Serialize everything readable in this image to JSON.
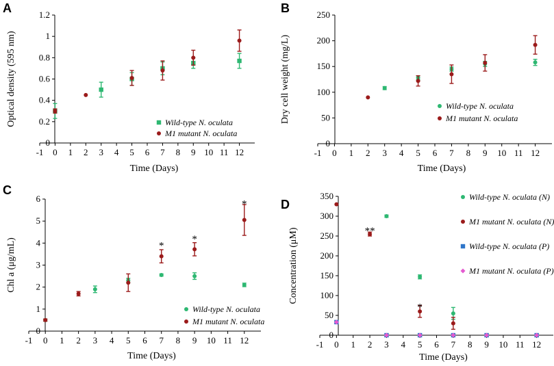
{
  "chart_data": [
    {
      "type": "scatter",
      "panel": "A",
      "xlabel": "Time (Days)",
      "ylabel": "Optical density (595 nm)",
      "xlim": [
        -1,
        13
      ],
      "ylim": [
        0,
        1.2
      ],
      "xticks": [
        -1,
        0,
        1,
        2,
        3,
        4,
        5,
        6,
        7,
        8,
        9,
        10,
        11,
        12
      ],
      "yticks": [
        0,
        0.2,
        0.4,
        0.6,
        0.8,
        1,
        1.2
      ],
      "ytick_labels": [
        "0",
        "0.2",
        "0.4",
        "0.6",
        "0.8",
        "1",
        "1.2"
      ],
      "legend_position": "bottom-right",
      "series": [
        {
          "name": "Wild-type N. oculata",
          "name_italic": "Wild-type N. oculata",
          "name_prefix": "",
          "color": "#2eb872",
          "marker": "square",
          "x": [
            0,
            3,
            5,
            7,
            9,
            12
          ],
          "values": [
            0.3,
            0.5,
            0.6,
            0.7,
            0.75,
            0.77
          ],
          "err": [
            0.07,
            0.07,
            0.06,
            0.06,
            0.05,
            0.07
          ]
        },
        {
          "name": "M1 mutant N. oculata",
          "name_italic": "M1 mutant N. oculata",
          "name_prefix": "",
          "color": "#9b1b1b",
          "marker": "circle",
          "x": [
            0,
            2,
            5,
            7,
            9,
            12
          ],
          "values": [
            0.3,
            0.45,
            0.61,
            0.68,
            0.8,
            0.96
          ],
          "err": [
            0.02,
            0,
            0.07,
            0.09,
            0.07,
            0.1
          ]
        }
      ],
      "annotations": []
    },
    {
      "type": "scatter",
      "panel": "B",
      "xlabel": "Time (Days)",
      "ylabel": "Dry cell weight (mg/L)",
      "xlim": [
        -1,
        13
      ],
      "ylim": [
        0,
        250
      ],
      "xticks": [
        -1,
        0,
        1,
        2,
        3,
        4,
        5,
        6,
        7,
        8,
        9,
        10,
        11,
        12
      ],
      "yticks": [
        0,
        50,
        100,
        150,
        200,
        250
      ],
      "ytick_labels": [
        "0",
        "50",
        "100",
        "150",
        "200",
        "250"
      ],
      "legend_position": "center-right",
      "series": [
        {
          "name": "Wild-type N. oculata",
          "name_italic": "Wild-type N. oculata",
          "name_prefix": "",
          "color": "#2eb872",
          "marker": "circle",
          "x": [
            3,
            5,
            7,
            9,
            12
          ],
          "values": [
            108,
            128,
            145,
            155,
            158
          ],
          "err": [
            3,
            4,
            4,
            5,
            6
          ]
        },
        {
          "name": "M1 mutant N. oculata",
          "name_italic": "M1 mutant N. oculata",
          "name_prefix": "",
          "color": "#9b1b1b",
          "marker": "circle",
          "x": [
            2,
            5,
            7,
            9,
            12
          ],
          "values": [
            90,
            122,
            135,
            157,
            192
          ],
          "err": [
            0,
            10,
            18,
            16,
            18
          ]
        }
      ],
      "annotations": []
    },
    {
      "type": "scatter",
      "panel": "C",
      "xlabel": "Time (Days)",
      "ylabel": "Chl a (μg/mL)",
      "xlim": [
        -1,
        13
      ],
      "ylim": [
        0,
        6
      ],
      "xticks": [
        -1,
        0,
        1,
        2,
        3,
        4,
        5,
        6,
        7,
        8,
        9,
        10,
        11,
        12
      ],
      "yticks": [
        0,
        1,
        2,
        3,
        4,
        5,
        6
      ],
      "ytick_labels": [
        "0",
        "1",
        "2",
        "3",
        "4",
        "5",
        "6"
      ],
      "legend_position": "bottom-right",
      "series": [
        {
          "name": "Wild-type N. oculata",
          "name_italic": "Wild-type N. oculata",
          "name_prefix": "",
          "color": "#2eb872",
          "marker": "circle",
          "x": [
            0,
            3,
            5,
            7,
            9,
            12
          ],
          "values": [
            0.5,
            1.9,
            2.3,
            2.55,
            2.5,
            2.1
          ],
          "err": [
            0.05,
            0.15,
            0.1,
            0.05,
            0.15,
            0.08
          ]
        },
        {
          "name": "M1 mutant N. oculata",
          "name_italic": "M1 mutant N. oculata",
          "name_prefix": "",
          "color": "#9b1b1b",
          "marker": "circle",
          "x": [
            0,
            2,
            5,
            7,
            9,
            12
          ],
          "values": [
            0.5,
            1.7,
            2.2,
            3.4,
            3.72,
            5.05
          ],
          "err": [
            0.05,
            0.1,
            0.4,
            0.3,
            0.3,
            0.7
          ]
        }
      ],
      "annotations": [
        {
          "x": 7,
          "y": 4.05,
          "text": "*"
        },
        {
          "x": 9,
          "y": 4.35,
          "text": "*"
        },
        {
          "x": 12,
          "y": 5.95,
          "text": "*"
        }
      ]
    },
    {
      "type": "scatter",
      "panel": "D",
      "xlabel": "Time (Days)",
      "ylabel": "Concentration (μM)",
      "xlim": [
        -1,
        13
      ],
      "ylim": [
        0,
        350
      ],
      "xticks": [
        -1,
        0,
        1,
        2,
        3,
        4,
        5,
        6,
        7,
        8,
        9,
        10,
        11,
        12
      ],
      "yticks": [
        0,
        50,
        100,
        150,
        200,
        250,
        300,
        350
      ],
      "ytick_labels": [
        "0",
        "50",
        "100",
        "150",
        "200",
        "250",
        "300",
        "350"
      ],
      "legend_position": "right",
      "series": [
        {
          "name": "Wild-type N. oculata (N)",
          "name_italic": "Wild-type N. oculata",
          "name_prefix": "",
          "color": "#2eb872",
          "marker": "circle",
          "x": [
            3,
            5,
            7
          ],
          "values": [
            300,
            147,
            55
          ],
          "err": [
            3,
            5,
            15
          ]
        },
        {
          "name": "M1 mutant N. oculata (N)",
          "name_italic": "M1 mutant N. oculata",
          "name_prefix": "",
          "color": "#9b1b1b",
          "marker": "circle",
          "x": [
            0,
            2,
            5,
            7
          ],
          "values": [
            330,
            255,
            60,
            30
          ],
          "err": [
            0,
            5,
            15,
            15
          ]
        },
        {
          "name": "Wild-type N. oculata (P)",
          "name_italic": "Wild-type N. oculata",
          "name_prefix": "",
          "color": "#2e75c9",
          "marker": "square",
          "x": [
            0,
            3,
            5,
            7,
            9,
            12
          ],
          "values": [
            33,
            0,
            0,
            0,
            0,
            0
          ],
          "err": [
            0,
            0,
            0,
            0,
            0,
            0
          ]
        },
        {
          "name": "M1 mutant N. oculata (P)",
          "name_italic": "M1 mutant N. oculata",
          "name_prefix": "",
          "color": "#e45ad0",
          "marker": "diamond",
          "x": [
            0,
            3,
            5,
            7,
            9,
            12
          ],
          "values": [
            33,
            0,
            0,
            0,
            0,
            0
          ],
          "err": [
            0,
            0,
            0,
            0,
            0,
            0
          ]
        }
      ],
      "annotations": [
        {
          "x": 2,
          "y": 272,
          "text": "**"
        },
        {
          "x": 5,
          "y": 80,
          "text": "*"
        }
      ]
    }
  ]
}
